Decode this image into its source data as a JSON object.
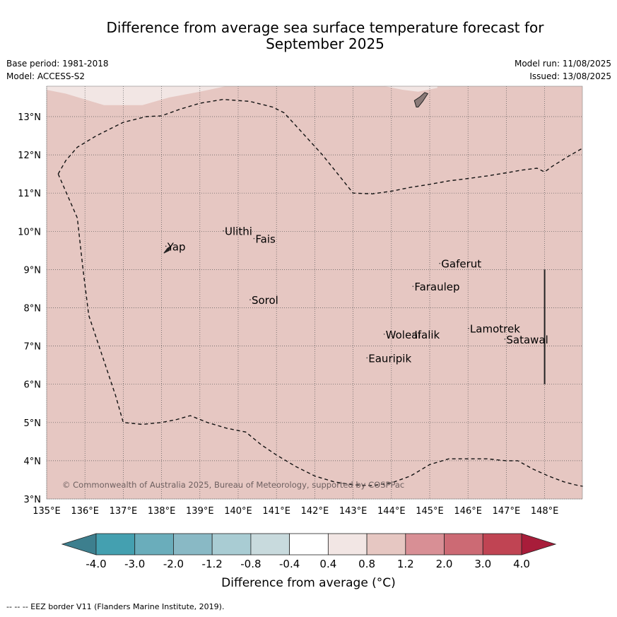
{
  "title": "Difference from average sea surface temperature forecast for",
  "title_line2": "September 2025",
  "base_period": "Base period: 1981-2018",
  "model": "Model: ACCESS-S2",
  "model_run": "Model run: 11/08/2025",
  "issued": "Issued: 13/08/2025",
  "copyright": "© Commonwealth of Australia 2025, Bureau of Meteorology, supported by COSPPac",
  "footer": "--  --  -- EEZ border V11 (Flanders Marine Institute, 2019).",
  "map": {
    "lon_range": [
      135,
      149
    ],
    "lat_range": [
      3,
      13.8
    ],
    "lon_ticks": [
      "135°E",
      "136°E",
      "137°E",
      "138°E",
      "139°E",
      "140°E",
      "141°E",
      "142°E",
      "143°E",
      "144°E",
      "145°E",
      "146°E",
      "147°E",
      "148°E"
    ],
    "lat_ticks": [
      "3°N",
      "4°N",
      "5°N",
      "6°N",
      "7°N",
      "8°N",
      "9°N",
      "10°N",
      "11°N",
      "12°N",
      "13°N"
    ],
    "fill_color": "#e6c7c2",
    "light_fill_color": "#f2e6e4",
    "places": [
      {
        "name": "Yap",
        "lon": 138.15,
        "lat": 9.5
      },
      {
        "name": "Ulithi",
        "lon": 139.65,
        "lat": 9.9
      },
      {
        "name": "Fais",
        "lon": 140.45,
        "lat": 9.7
      },
      {
        "name": "Sorol",
        "lon": 140.35,
        "lat": 8.1
      },
      {
        "name": "Gaferut",
        "lon": 145.3,
        "lat": 9.05
      },
      {
        "name": "Faraulep",
        "lon": 144.6,
        "lat": 8.45
      },
      {
        "name": "Lamotrek",
        "lon": 146.05,
        "lat": 7.35
      },
      {
        "name": "Satawal",
        "lon": 147.0,
        "lat": 7.07
      },
      {
        "name": "Woleai",
        "lon": 143.85,
        "lat": 7.2
      },
      {
        "name": "Ifalik",
        "lon": 144.6,
        "lat": 7.2
      },
      {
        "name": "Eauripik",
        "lon": 143.4,
        "lat": 6.58
      }
    ]
  },
  "colorbar": {
    "label": "Difference from average (°C)",
    "ticks": [
      "-4.0",
      "-3.0",
      "-2.0",
      "-1.2",
      "-0.8",
      "-0.4",
      "0.4",
      "0.8",
      "1.2",
      "2.0",
      "3.0",
      "4.0"
    ],
    "colors": [
      "#44a0b0",
      "#6aadbb",
      "#89b9c5",
      "#a9ccd3",
      "#c8dadd",
      "#ffffff",
      "#f2e6e4",
      "#e6c7c2",
      "#d88f95",
      "#cc6a74",
      "#c04453"
    ],
    "under_color": "#3d7f8e",
    "over_color": "#a81d3a"
  }
}
